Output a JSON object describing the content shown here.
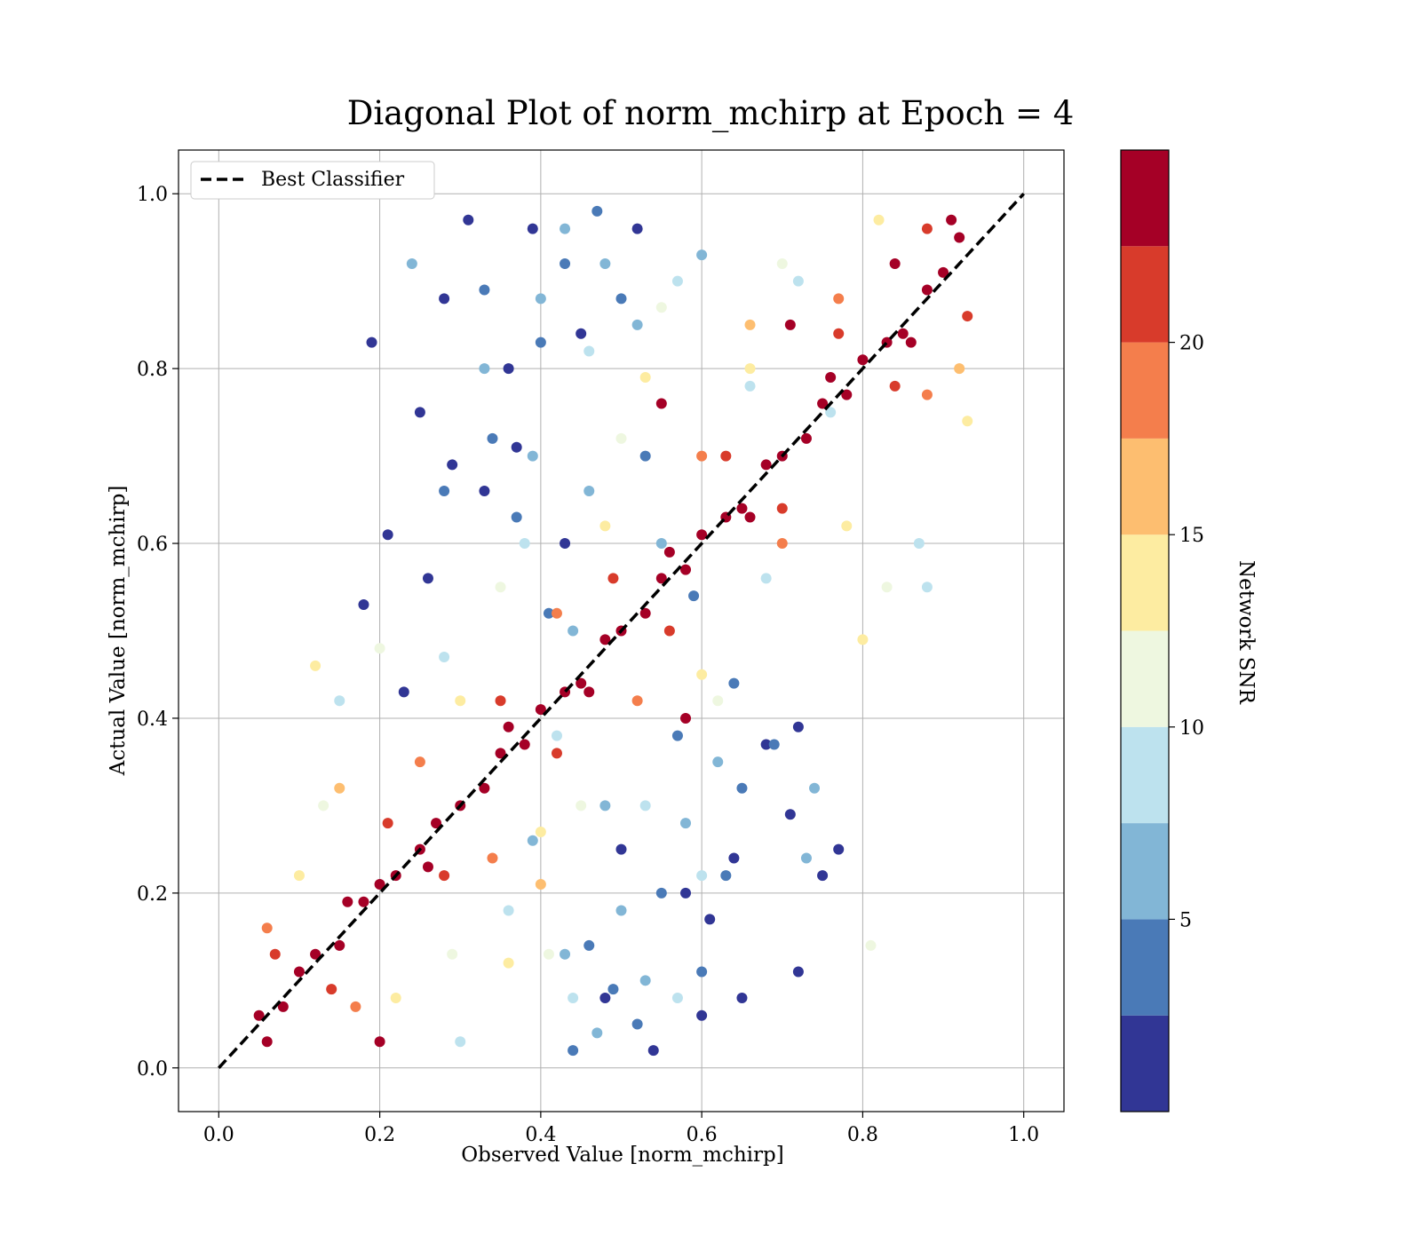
{
  "chart_data": {
    "type": "scatter",
    "title": "Diagonal Plot of norm_mchirp at Epoch = 4",
    "xlabel": "Observed Value [norm_mchirp]",
    "ylabel": "Actual Value [norm_mchirp]",
    "xlim": [
      -0.05,
      1.05
    ],
    "ylim": [
      -0.05,
      1.05
    ],
    "x_ticks": [
      "0.0",
      "0.2",
      "0.4",
      "0.6",
      "0.8",
      "1.0"
    ],
    "y_ticks": [
      "0.0",
      "0.2",
      "0.4",
      "0.6",
      "0.8",
      "1.0"
    ],
    "grid": true,
    "legend": {
      "position": "top-left",
      "entries": [
        {
          "label": "Best Classifier",
          "style": "dashed",
          "color": "#000000"
        }
      ]
    },
    "reference_line": {
      "name": "Best Classifier",
      "x": [
        0,
        1
      ],
      "y": [
        0,
        1
      ]
    },
    "colorbar": {
      "label": "Network SNR",
      "range": [
        0,
        25
      ],
      "ticks": [
        "5",
        "10",
        "15",
        "20"
      ],
      "tick_values": [
        5,
        10,
        15,
        20
      ],
      "bands": [
        {
          "from": 0.0,
          "to": 2.5,
          "color": "#313695"
        },
        {
          "from": 2.5,
          "to": 5.0,
          "color": "#4a7ab7"
        },
        {
          "from": 5.0,
          "to": 7.5,
          "color": "#82b6d6"
        },
        {
          "from": 7.5,
          "to": 10.0,
          "color": "#bde2ee"
        },
        {
          "from": 10.0,
          "to": 12.5,
          "color": "#eef7e0"
        },
        {
          "from": 12.5,
          "to": 15.0,
          "color": "#fdeca1"
        },
        {
          "from": 15.0,
          "to": 17.5,
          "color": "#fdbe70"
        },
        {
          "from": 17.5,
          "to": 20.0,
          "color": "#f47e4c"
        },
        {
          "from": 20.0,
          "to": 22.5,
          "color": "#d83b2b"
        },
        {
          "from": 22.5,
          "to": 25.0,
          "color": "#a50026"
        }
      ]
    },
    "series": [
      {
        "color_by": "Network SNR",
        "points": [
          [
            0.05,
            0.06,
            24
          ],
          [
            0.08,
            0.07,
            24
          ],
          [
            0.1,
            0.11,
            24
          ],
          [
            0.12,
            0.13,
            24
          ],
          [
            0.15,
            0.14,
            24
          ],
          [
            0.18,
            0.19,
            24
          ],
          [
            0.2,
            0.21,
            24
          ],
          [
            0.22,
            0.22,
            24
          ],
          [
            0.25,
            0.25,
            24
          ],
          [
            0.27,
            0.28,
            24
          ],
          [
            0.3,
            0.3,
            24
          ],
          [
            0.33,
            0.32,
            24
          ],
          [
            0.35,
            0.36,
            24
          ],
          [
            0.38,
            0.37,
            24
          ],
          [
            0.4,
            0.41,
            24
          ],
          [
            0.43,
            0.43,
            24
          ],
          [
            0.45,
            0.44,
            24
          ],
          [
            0.48,
            0.49,
            24
          ],
          [
            0.5,
            0.5,
            24
          ],
          [
            0.53,
            0.52,
            24
          ],
          [
            0.55,
            0.56,
            24
          ],
          [
            0.58,
            0.57,
            24
          ],
          [
            0.6,
            0.61,
            24
          ],
          [
            0.63,
            0.63,
            24
          ],
          [
            0.65,
            0.64,
            24
          ],
          [
            0.68,
            0.69,
            24
          ],
          [
            0.7,
            0.7,
            24
          ],
          [
            0.73,
            0.72,
            24
          ],
          [
            0.75,
            0.76,
            24
          ],
          [
            0.78,
            0.77,
            24
          ],
          [
            0.8,
            0.81,
            24
          ],
          [
            0.83,
            0.83,
            24
          ],
          [
            0.85,
            0.84,
            24
          ],
          [
            0.88,
            0.89,
            24
          ],
          [
            0.9,
            0.91,
            24
          ],
          [
            0.92,
            0.95,
            24
          ],
          [
            0.06,
            0.03,
            24
          ],
          [
            0.16,
            0.19,
            24
          ],
          [
            0.26,
            0.23,
            24
          ],
          [
            0.36,
            0.39,
            24
          ],
          [
            0.46,
            0.43,
            24
          ],
          [
            0.56,
            0.59,
            24
          ],
          [
            0.66,
            0.63,
            24
          ],
          [
            0.76,
            0.79,
            24
          ],
          [
            0.86,
            0.83,
            24
          ],
          [
            0.91,
            0.97,
            24
          ],
          [
            0.84,
            0.92,
            24
          ],
          [
            0.07,
            0.13,
            21
          ],
          [
            0.14,
            0.09,
            21
          ],
          [
            0.21,
            0.28,
            21
          ],
          [
            0.28,
            0.22,
            21
          ],
          [
            0.35,
            0.42,
            21
          ],
          [
            0.42,
            0.36,
            21
          ],
          [
            0.49,
            0.56,
            21
          ],
          [
            0.56,
            0.5,
            21
          ],
          [
            0.63,
            0.7,
            21
          ],
          [
            0.7,
            0.64,
            21
          ],
          [
            0.77,
            0.84,
            21
          ],
          [
            0.84,
            0.78,
            21
          ],
          [
            0.88,
            0.96,
            21
          ],
          [
            0.93,
            0.86,
            21
          ],
          [
            0.58,
            0.4,
            23
          ],
          [
            0.55,
            0.76,
            23
          ],
          [
            0.2,
            0.03,
            23
          ],
          [
            0.71,
            0.85,
            23
          ],
          [
            0.06,
            0.16,
            18
          ],
          [
            0.17,
            0.07,
            18
          ],
          [
            0.25,
            0.35,
            18
          ],
          [
            0.34,
            0.24,
            18
          ],
          [
            0.42,
            0.52,
            18
          ],
          [
            0.52,
            0.42,
            18
          ],
          [
            0.6,
            0.7,
            18
          ],
          [
            0.7,
            0.6,
            18
          ],
          [
            0.77,
            0.88,
            18
          ],
          [
            0.88,
            0.77,
            18
          ],
          [
            0.4,
            0.21,
            17
          ],
          [
            0.66,
            0.85,
            17
          ],
          [
            0.15,
            0.32,
            17
          ],
          [
            0.92,
            0.8,
            16
          ],
          [
            0.1,
            0.22,
            14
          ],
          [
            0.22,
            0.08,
            14
          ],
          [
            0.3,
            0.42,
            14
          ],
          [
            0.4,
            0.27,
            14
          ],
          [
            0.48,
            0.62,
            14
          ],
          [
            0.6,
            0.45,
            14
          ],
          [
            0.66,
            0.8,
            14
          ],
          [
            0.78,
            0.62,
            14
          ],
          [
            0.82,
            0.97,
            14
          ],
          [
            0.93,
            0.74,
            14
          ],
          [
            0.36,
            0.12,
            13
          ],
          [
            0.53,
            0.79,
            13
          ],
          [
            0.12,
            0.46,
            13
          ],
          [
            0.8,
            0.49,
            13
          ],
          [
            0.13,
            0.3,
            11
          ],
          [
            0.29,
            0.13,
            11
          ],
          [
            0.35,
            0.55,
            11
          ],
          [
            0.45,
            0.3,
            11
          ],
          [
            0.5,
            0.72,
            11
          ],
          [
            0.62,
            0.42,
            11
          ],
          [
            0.7,
            0.92,
            11
          ],
          [
            0.83,
            0.55,
            11
          ],
          [
            0.2,
            0.48,
            11
          ],
          [
            0.81,
            0.14,
            11
          ],
          [
            0.55,
            0.87,
            11
          ],
          [
            0.41,
            0.13,
            11
          ],
          [
            0.15,
            0.42,
            9
          ],
          [
            0.3,
            0.03,
            9
          ],
          [
            0.38,
            0.6,
            9
          ],
          [
            0.44,
            0.08,
            9
          ],
          [
            0.46,
            0.82,
            9
          ],
          [
            0.53,
            0.3,
            9
          ],
          [
            0.57,
            0.9,
            9
          ],
          [
            0.68,
            0.56,
            9
          ],
          [
            0.72,
            0.9,
            9
          ],
          [
            0.87,
            0.6,
            9
          ],
          [
            0.42,
            0.38,
            9
          ],
          [
            0.6,
            0.22,
            9
          ],
          [
            0.66,
            0.78,
            9
          ],
          [
            0.88,
            0.55,
            9
          ],
          [
            0.36,
            0.18,
            9
          ],
          [
            0.57,
            0.08,
            9
          ],
          [
            0.76,
            0.75,
            9
          ],
          [
            0.28,
            0.47,
            9
          ],
          [
            0.24,
            0.92,
            6
          ],
          [
            0.33,
            0.8,
            6
          ],
          [
            0.39,
            0.7,
            6
          ],
          [
            0.4,
            0.88,
            6
          ],
          [
            0.43,
            0.96,
            6
          ],
          [
            0.46,
            0.66,
            6
          ],
          [
            0.48,
            0.92,
            6
          ],
          [
            0.52,
            0.85,
            6
          ],
          [
            0.55,
            0.6,
            6
          ],
          [
            0.44,
            0.5,
            6
          ],
          [
            0.43,
            0.13,
            6
          ],
          [
            0.47,
            0.04,
            6
          ],
          [
            0.5,
            0.18,
            6
          ],
          [
            0.53,
            0.1,
            6
          ],
          [
            0.58,
            0.28,
            6
          ],
          [
            0.62,
            0.35,
            6
          ],
          [
            0.48,
            0.3,
            6
          ],
          [
            0.39,
            0.26,
            6
          ],
          [
            0.6,
            0.93,
            6
          ],
          [
            0.73,
            0.24,
            6
          ],
          [
            0.74,
            0.32,
            6
          ],
          [
            0.34,
            0.72,
            3
          ],
          [
            0.37,
            0.63,
            3
          ],
          [
            0.4,
            0.83,
            3
          ],
          [
            0.43,
            0.92,
            3
          ],
          [
            0.47,
            0.98,
            3
          ],
          [
            0.5,
            0.88,
            3
          ],
          [
            0.41,
            0.52,
            3
          ],
          [
            0.53,
            0.7,
            3
          ],
          [
            0.33,
            0.89,
            3
          ],
          [
            0.46,
            0.14,
            3
          ],
          [
            0.55,
            0.2,
            3
          ],
          [
            0.6,
            0.11,
            3
          ],
          [
            0.57,
            0.38,
            3
          ],
          [
            0.63,
            0.22,
            3
          ],
          [
            0.65,
            0.32,
            3
          ],
          [
            0.52,
            0.05,
            3
          ],
          [
            0.64,
            0.44,
            3
          ],
          [
            0.59,
            0.54,
            3
          ],
          [
            0.49,
            0.09,
            3
          ],
          [
            0.44,
            0.02,
            3
          ],
          [
            0.69,
            0.37,
            3
          ],
          [
            0.28,
            0.66,
            3
          ],
          [
            0.19,
            0.83,
            1
          ],
          [
            0.18,
            0.53,
            1
          ],
          [
            0.21,
            0.61,
            1
          ],
          [
            0.25,
            0.75,
            1
          ],
          [
            0.28,
            0.88,
            1
          ],
          [
            0.31,
            0.97,
            1
          ],
          [
            0.36,
            0.8,
            1
          ],
          [
            0.39,
            0.96,
            1
          ],
          [
            0.33,
            0.66,
            1
          ],
          [
            0.26,
            0.56,
            1
          ],
          [
            0.23,
            0.43,
            1
          ],
          [
            0.45,
            0.84,
            1
          ],
          [
            0.52,
            0.96,
            1
          ],
          [
            0.5,
            0.25,
            1
          ],
          [
            0.61,
            0.17,
            1
          ],
          [
            0.64,
            0.24,
            1
          ],
          [
            0.68,
            0.37,
            1
          ],
          [
            0.71,
            0.29,
            1
          ],
          [
            0.72,
            0.39,
            1
          ],
          [
            0.75,
            0.22,
            1
          ],
          [
            0.77,
            0.25,
            1
          ],
          [
            0.65,
            0.08,
            1
          ],
          [
            0.72,
            0.11,
            1
          ],
          [
            0.58,
            0.2,
            1
          ],
          [
            0.48,
            0.08,
            1
          ],
          [
            0.54,
            0.02,
            1
          ],
          [
            0.6,
            0.06,
            1
          ],
          [
            0.43,
            0.6,
            1
          ],
          [
            0.29,
            0.69,
            1
          ],
          [
            0.37,
            0.71,
            1
          ]
        ]
      }
    ]
  }
}
